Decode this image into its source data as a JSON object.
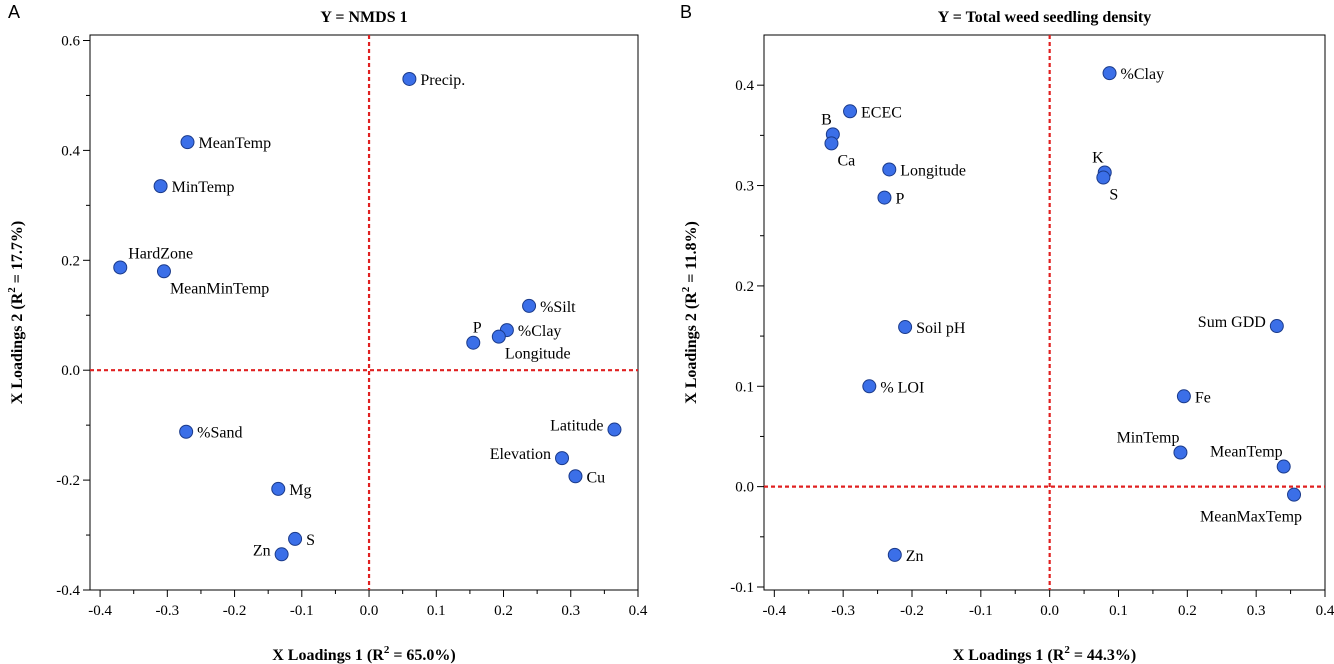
{
  "panels": [
    "A",
    "B"
  ],
  "chart_data": [
    {
      "type": "scatter",
      "panel_label": "A",
      "title": "Y = NMDS 1",
      "xlabel_main": "X Loadings 1 (R",
      "xlabel_sup": "2",
      "xlabel_tail": " = 65.0%)",
      "ylabel_main": "X Loadings 2 (R",
      "ylabel_sup": "2",
      "ylabel_tail": " = 17.7%)",
      "xlim": [
        -0.415,
        0.4
      ],
      "ylim": [
        -0.4,
        0.61
      ],
      "xticks": [
        -0.4,
        -0.3,
        -0.2,
        -0.1,
        0.0,
        0.1,
        0.2,
        0.3,
        0.4
      ],
      "xtick_labels": [
        "-0.4",
        "-0.3",
        "-0.2",
        "-0.1",
        "0.0",
        "0.1",
        "0.2",
        "0.3",
        "0.4"
      ],
      "yticks": [
        -0.4,
        -0.2,
        0.0,
        0.2,
        0.4,
        0.6
      ],
      "ytick_labels": [
        "-0.4",
        "-0.2",
        "0.0",
        "0.2",
        "0.4",
        "0.6"
      ],
      "reference_lines": {
        "x": 0,
        "y": 0
      },
      "points": [
        {
          "label": "Precip.",
          "x": 0.06,
          "y": 0.53,
          "pos": "right"
        },
        {
          "label": "MeanTemp",
          "x": -0.27,
          "y": 0.415,
          "pos": "right"
        },
        {
          "label": "MinTemp",
          "x": -0.31,
          "y": 0.335,
          "pos": "right"
        },
        {
          "label": "HardZone",
          "x": -0.37,
          "y": 0.187,
          "pos": "upper-right"
        },
        {
          "label": "MeanMinTemp",
          "x": -0.305,
          "y": 0.18,
          "pos": "lower-right"
        },
        {
          "label": "%Silt",
          "x": 0.238,
          "y": 0.117,
          "pos": "right"
        },
        {
          "label": "%Clay",
          "x": 0.205,
          "y": 0.073,
          "pos": "right"
        },
        {
          "label": "P",
          "x": 0.155,
          "y": 0.05,
          "pos": "above"
        },
        {
          "label": "Longitude",
          "x": 0.193,
          "y": 0.061,
          "pos": "lower-right"
        },
        {
          "label": "%Sand",
          "x": -0.272,
          "y": -0.112,
          "pos": "right"
        },
        {
          "label": "Latitude",
          "x": 0.365,
          "y": -0.108,
          "pos": "left"
        },
        {
          "label": "Elevation",
          "x": 0.287,
          "y": -0.16,
          "pos": "left"
        },
        {
          "label": "Cu",
          "x": 0.307,
          "y": -0.193,
          "pos": "right"
        },
        {
          "label": "Mg",
          "x": -0.135,
          "y": -0.216,
          "pos": "right"
        },
        {
          "label": "S",
          "x": -0.11,
          "y": -0.307,
          "pos": "right"
        },
        {
          "label": "Zn",
          "x": -0.13,
          "y": -0.335,
          "pos": "left"
        }
      ]
    },
    {
      "type": "scatter",
      "panel_label": "B",
      "title": "Y = Total weed seedling density",
      "xlabel_main": "X Loadings 1 (R",
      "xlabel_sup": "2",
      "xlabel_tail": " = 44.3%)",
      "ylabel_main": "X Loadings 2 (R",
      "ylabel_sup": "2",
      "ylabel_tail": " = 11.8%)",
      "xlim": [
        -0.415,
        0.4
      ],
      "ylim": [
        -0.103,
        0.45
      ],
      "xticks": [
        -0.4,
        -0.3,
        -0.2,
        -0.1,
        0.0,
        0.1,
        0.2,
        0.3,
        0.4
      ],
      "xtick_labels": [
        "-0.4",
        "-0.3",
        "-0.2",
        "-0.1",
        "0.0",
        "0.1",
        "0.2",
        "0.3",
        "0.4"
      ],
      "yticks": [
        -0.1,
        0.0,
        0.1,
        0.2,
        0.3,
        0.4
      ],
      "ytick_labels": [
        "-0.1",
        "0.0",
        "0.1",
        "0.2",
        "0.3",
        "0.4"
      ],
      "reference_lines": {
        "x": 0,
        "y": 0
      },
      "points": [
        {
          "label": "%Clay",
          "x": 0.087,
          "y": 0.412,
          "pos": "right"
        },
        {
          "label": "ECEC",
          "x": -0.29,
          "y": 0.374,
          "pos": "right"
        },
        {
          "label": "B",
          "x": -0.315,
          "y": 0.351,
          "pos": "upper-left"
        },
        {
          "label": "Ca",
          "x": -0.317,
          "y": 0.342,
          "pos": "lower-right"
        },
        {
          "label": "Longitude",
          "x": -0.233,
          "y": 0.316,
          "pos": "right"
        },
        {
          "label": "K",
          "x": 0.08,
          "y": 0.313,
          "pos": "upper-left"
        },
        {
          "label": "S",
          "x": 0.078,
          "y": 0.308,
          "pos": "lower-right"
        },
        {
          "label": "P",
          "x": -0.24,
          "y": 0.288,
          "pos": "right"
        },
        {
          "label": "Soil pH",
          "x": -0.21,
          "y": 0.159,
          "pos": "right"
        },
        {
          "label": "Sum GDD",
          "x": 0.33,
          "y": 0.16,
          "pos": "left"
        },
        {
          "label": "% LOI",
          "x": -0.262,
          "y": 0.1,
          "pos": "right"
        },
        {
          "label": "Fe",
          "x": 0.195,
          "y": 0.09,
          "pos": "right"
        },
        {
          "label": "MinTemp",
          "x": 0.19,
          "y": 0.034,
          "pos": "upper-left"
        },
        {
          "label": "MeanTemp",
          "x": 0.34,
          "y": 0.02,
          "pos": "upper-left"
        },
        {
          "label": "MeanMaxTemp",
          "x": 0.355,
          "y": -0.008,
          "pos": "lower-left"
        },
        {
          "label": "Zn",
          "x": -0.225,
          "y": -0.068,
          "pos": "right"
        }
      ]
    }
  ],
  "colors": {
    "point": "#3b6fe8",
    "point_stroke": "#1a3a8a",
    "reference_line": "#e02020",
    "axis": "#000000"
  }
}
